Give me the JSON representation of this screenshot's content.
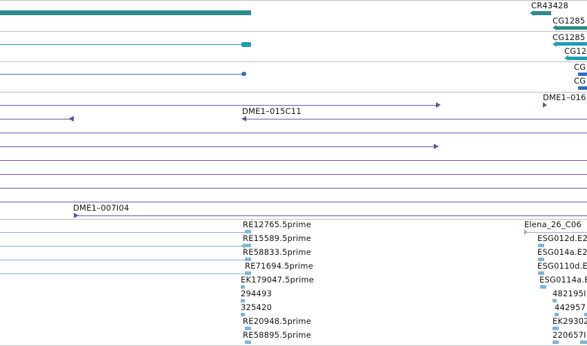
{
  "colors": {
    "gene_teal": "#2e8b8b",
    "transcript_cyan": "#1a9fb5",
    "cds_blue": "#2f6fc4",
    "clone_purple": "#6a4fa3",
    "est_light_blue": "#7fb6d6",
    "divider_gray": "#bdbdbd"
  },
  "labels": {
    "cr43428": "CR43428",
    "cg1285_a": "CG1285",
    "cg1285_b": "CG1285",
    "cg12_c": "CG12",
    "cg_d": "CG",
    "cg_e": "CG",
    "dme1_016": "DME1–016",
    "dme1_015c11": "DME1–015C11",
    "dme1_007i04": "DME1–007I04",
    "re12765": "RE12765.5prime",
    "re15589": "RE15589.5prime",
    "re58833": "RE58833.5prime",
    "re71694": "RE71694.5prime",
    "ek179047": "EK179047.5prime",
    "n294493": "294493",
    "n325420": "325420",
    "re20948": "RE20948.5prime",
    "re58895": "RE58895.5prime",
    "elena_26_c06": "Elena_26_C06",
    "esg012d": "ESG012d.E2",
    "esg014a": "ESG014a.E2",
    "esg0110d": "ESG0110d.E",
    "esg0114a": "ESG0114a.E",
    "n482195": "482195I",
    "n442957": "442957",
    "ek29302": "EK29302",
    "n220657": "220657I"
  }
}
